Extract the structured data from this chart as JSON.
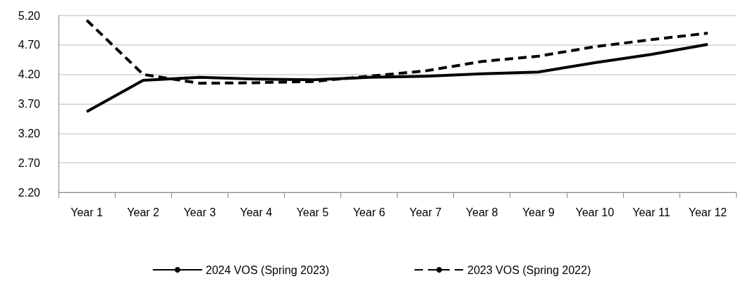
{
  "chart_data": {
    "type": "line",
    "categories": [
      "Year 1",
      "Year 2",
      "Year 3",
      "Year 4",
      "Year 5",
      "Year 6",
      "Year 7",
      "Year 8",
      "Year 9",
      "Year 10",
      "Year 11",
      "Year 12"
    ],
    "series": [
      {
        "name": "2024 VOS (Spring 2023)",
        "color": "#000000",
        "line_style": "solid",
        "values": [
          3.57,
          4.1,
          4.15,
          4.12,
          4.11,
          4.15,
          4.17,
          4.21,
          4.24,
          4.4,
          4.54,
          4.71
        ]
      },
      {
        "name": "2023 VOS (Spring 2022)",
        "color": "#000000",
        "line_style": "dashed",
        "values": [
          5.12,
          4.2,
          4.05,
          4.06,
          4.08,
          4.17,
          4.26,
          4.42,
          4.51,
          4.67,
          4.79,
          4.9
        ]
      }
    ],
    "ylim": [
      2.2,
      5.2
    ],
    "yticks": [
      {
        "value": 2.2,
        "label": "2.20"
      },
      {
        "value": 2.7,
        "label": "2.70"
      },
      {
        "value": 3.2,
        "label": "3.20"
      },
      {
        "value": 3.7,
        "label": "3.70"
      },
      {
        "value": 4.2,
        "label": "4.20"
      },
      {
        "value": 4.7,
        "label": "4.70"
      },
      {
        "value": 5.2,
        "label": "5.20"
      }
    ],
    "grid": "y",
    "legend": "bottom",
    "marker": "none"
  }
}
